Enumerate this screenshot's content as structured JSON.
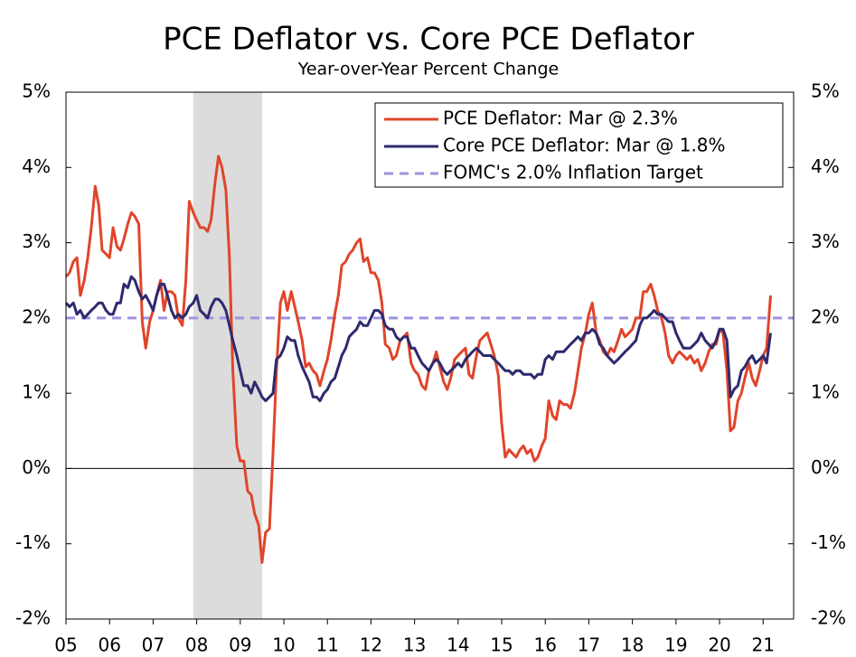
{
  "chart_data": {
    "type": "line",
    "title": "PCE Deflator vs. Core PCE Deflator",
    "subtitle": "Year-over-Year Percent Change",
    "x": [
      2005.0,
      2005.08,
      2005.17,
      2005.25,
      2005.33,
      2005.42,
      2005.5,
      2005.58,
      2005.67,
      2005.75,
      2005.83,
      2005.92,
      2006.0,
      2006.08,
      2006.17,
      2006.25,
      2006.33,
      2006.42,
      2006.5,
      2006.58,
      2006.67,
      2006.75,
      2006.83,
      2006.92,
      2007.0,
      2007.08,
      2007.17,
      2007.25,
      2007.33,
      2007.42,
      2007.5,
      2007.58,
      2007.67,
      2007.75,
      2007.83,
      2007.92,
      2008.0,
      2008.08,
      2008.17,
      2008.25,
      2008.33,
      2008.42,
      2008.5,
      2008.58,
      2008.67,
      2008.75,
      2008.83,
      2008.92,
      2009.0,
      2009.08,
      2009.17,
      2009.25,
      2009.33,
      2009.42,
      2009.5,
      2009.58,
      2009.67,
      2009.75,
      2009.83,
      2009.92,
      2010.0,
      2010.08,
      2010.17,
      2010.25,
      2010.33,
      2010.42,
      2010.5,
      2010.58,
      2010.67,
      2010.75,
      2010.83,
      2010.92,
      2011.0,
      2011.08,
      2011.17,
      2011.25,
      2011.33,
      2011.42,
      2011.5,
      2011.58,
      2011.67,
      2011.75,
      2011.83,
      2011.92,
      2012.0,
      2012.08,
      2012.17,
      2012.25,
      2012.33,
      2012.42,
      2012.5,
      2012.58,
      2012.67,
      2012.75,
      2012.83,
      2012.92,
      2013.0,
      2013.08,
      2013.17,
      2013.25,
      2013.33,
      2013.42,
      2013.5,
      2013.58,
      2013.67,
      2013.75,
      2013.83,
      2013.92,
      2014.0,
      2014.08,
      2014.17,
      2014.25,
      2014.33,
      2014.42,
      2014.5,
      2014.58,
      2014.67,
      2014.75,
      2014.83,
      2014.92,
      2015.0,
      2015.08,
      2015.17,
      2015.25,
      2015.33,
      2015.42,
      2015.5,
      2015.58,
      2015.67,
      2015.75,
      2015.83,
      2015.92,
      2016.0,
      2016.08,
      2016.17,
      2016.25,
      2016.33,
      2016.42,
      2016.5,
      2016.58,
      2016.67,
      2016.75,
      2016.83,
      2016.92,
      2017.0,
      2017.08,
      2017.17,
      2017.25,
      2017.33,
      2017.42,
      2017.5,
      2017.58,
      2017.67,
      2017.75,
      2017.83,
      2017.92,
      2018.0,
      2018.08,
      2018.17,
      2018.25,
      2018.33,
      2018.42,
      2018.5,
      2018.58,
      2018.67,
      2018.75,
      2018.83,
      2018.92,
      2019.0,
      2019.08,
      2019.17,
      2019.25,
      2019.33,
      2019.42,
      2019.5,
      2019.58,
      2019.67,
      2019.75,
      2019.83,
      2019.92,
      2020.0,
      2020.08,
      2020.17,
      2020.25,
      2020.33,
      2020.42,
      2020.5,
      2020.58,
      2020.67,
      2020.75,
      2020.83,
      2020.92,
      2021.0,
      2021.08,
      2021.17
    ],
    "series": [
      {
        "name": "PCE Deflator: Mar @ 2.3%",
        "color": "#e0452a",
        "values": [
          2.55,
          2.6,
          2.75,
          2.8,
          2.3,
          2.5,
          2.8,
          3.2,
          3.75,
          3.5,
          2.9,
          2.85,
          2.8,
          3.2,
          2.95,
          2.9,
          3.05,
          3.25,
          3.4,
          3.35,
          3.25,
          1.95,
          1.6,
          1.95,
          2.1,
          2.3,
          2.5,
          2.1,
          2.35,
          2.35,
          2.3,
          2.0,
          1.9,
          2.5,
          3.55,
          3.4,
          3.3,
          3.2,
          3.2,
          3.15,
          3.3,
          3.8,
          4.15,
          4.0,
          3.7,
          2.8,
          1.3,
          0.3,
          0.1,
          0.1,
          -0.3,
          -0.35,
          -0.6,
          -0.75,
          -1.25,
          -0.85,
          -0.8,
          0.2,
          1.3,
          2.2,
          2.35,
          2.1,
          2.35,
          2.15,
          1.95,
          1.7,
          1.35,
          1.4,
          1.3,
          1.25,
          1.1,
          1.3,
          1.45,
          1.7,
          2.05,
          2.3,
          2.7,
          2.75,
          2.85,
          2.9,
          3.0,
          3.05,
          2.75,
          2.8,
          2.6,
          2.6,
          2.5,
          2.2,
          1.65,
          1.6,
          1.45,
          1.5,
          1.7,
          1.75,
          1.8,
          1.4,
          1.3,
          1.25,
          1.1,
          1.05,
          1.3,
          1.4,
          1.55,
          1.35,
          1.15,
          1.05,
          1.2,
          1.45,
          1.5,
          1.55,
          1.6,
          1.25,
          1.2,
          1.5,
          1.7,
          1.75,
          1.8,
          1.65,
          1.5,
          1.25,
          0.6,
          0.15,
          0.25,
          0.2,
          0.15,
          0.25,
          0.3,
          0.2,
          0.25,
          0.1,
          0.15,
          0.3,
          0.4,
          0.9,
          0.7,
          0.65,
          0.9,
          0.85,
          0.85,
          0.8,
          1.0,
          1.3,
          1.6,
          1.8,
          2.05,
          2.2,
          1.8,
          1.7,
          1.55,
          1.5,
          1.6,
          1.55,
          1.7,
          1.85,
          1.75,
          1.8,
          1.85,
          2.0,
          2.0,
          2.35,
          2.35,
          2.45,
          2.3,
          2.1,
          2.0,
          1.8,
          1.5,
          1.4,
          1.5,
          1.55,
          1.5,
          1.45,
          1.5,
          1.4,
          1.45,
          1.3,
          1.4,
          1.55,
          1.65,
          1.65,
          1.85,
          1.8,
          1.3,
          0.5,
          0.55,
          0.9,
          1.0,
          1.2,
          1.4,
          1.2,
          1.1,
          1.3,
          1.5,
          1.6,
          2.3
        ]
      },
      {
        "name": "Core PCE Deflator: Mar @ 1.8%",
        "color": "#2e2a6e",
        "values": [
          2.2,
          2.15,
          2.2,
          2.05,
          2.1,
          2.0,
          2.05,
          2.1,
          2.15,
          2.2,
          2.2,
          2.1,
          2.05,
          2.05,
          2.2,
          2.2,
          2.45,
          2.4,
          2.55,
          2.5,
          2.35,
          2.25,
          2.3,
          2.2,
          2.1,
          2.3,
          2.45,
          2.45,
          2.3,
          2.1,
          2.0,
          2.05,
          2.0,
          2.05,
          2.15,
          2.2,
          2.3,
          2.1,
          2.05,
          2.0,
          2.15,
          2.25,
          2.25,
          2.2,
          2.1,
          1.9,
          1.7,
          1.5,
          1.3,
          1.1,
          1.1,
          1.0,
          1.15,
          1.05,
          0.95,
          0.9,
          0.95,
          1.0,
          1.45,
          1.5,
          1.6,
          1.75,
          1.7,
          1.7,
          1.5,
          1.35,
          1.25,
          1.15,
          0.95,
          0.95,
          0.9,
          1.0,
          1.05,
          1.15,
          1.2,
          1.35,
          1.5,
          1.6,
          1.75,
          1.8,
          1.85,
          1.95,
          1.9,
          1.9,
          2.0,
          2.1,
          2.1,
          2.05,
          1.9,
          1.85,
          1.85,
          1.75,
          1.7,
          1.75,
          1.75,
          1.6,
          1.6,
          1.5,
          1.4,
          1.35,
          1.3,
          1.4,
          1.45,
          1.4,
          1.3,
          1.25,
          1.3,
          1.35,
          1.4,
          1.35,
          1.45,
          1.5,
          1.55,
          1.6,
          1.55,
          1.5,
          1.5,
          1.5,
          1.45,
          1.4,
          1.35,
          1.3,
          1.3,
          1.25,
          1.3,
          1.3,
          1.25,
          1.25,
          1.25,
          1.2,
          1.25,
          1.25,
          1.45,
          1.5,
          1.45,
          1.55,
          1.55,
          1.55,
          1.6,
          1.65,
          1.7,
          1.75,
          1.7,
          1.8,
          1.8,
          1.85,
          1.8,
          1.65,
          1.6,
          1.5,
          1.45,
          1.4,
          1.45,
          1.5,
          1.55,
          1.6,
          1.65,
          1.7,
          1.9,
          2.0,
          2.0,
          2.05,
          2.1,
          2.05,
          2.05,
          2.0,
          1.95,
          1.95,
          1.8,
          1.7,
          1.6,
          1.6,
          1.6,
          1.65,
          1.7,
          1.8,
          1.7,
          1.65,
          1.6,
          1.7,
          1.85,
          1.85,
          1.7,
          0.95,
          1.05,
          1.1,
          1.3,
          1.35,
          1.45,
          1.5,
          1.4,
          1.45,
          1.5,
          1.4,
          1.8
        ]
      }
    ],
    "reference_line": {
      "name": "FOMC's 2.0% Inflation Target",
      "value": 2,
      "color": "#9d93e0"
    },
    "shaded_regions": [
      {
        "start": 2007.92,
        "end": 2009.5,
        "color": "#dcdcdc"
      }
    ],
    "xlim": [
      2005,
      2021.7
    ],
    "xticks": [
      {
        "value": 2005,
        "label": "05"
      },
      {
        "value": 2006,
        "label": "06"
      },
      {
        "value": 2007,
        "label": "07"
      },
      {
        "value": 2008,
        "label": "08"
      },
      {
        "value": 2009,
        "label": "09"
      },
      {
        "value": 2010,
        "label": "10"
      },
      {
        "value": 2011,
        "label": "11"
      },
      {
        "value": 2012,
        "label": "12"
      },
      {
        "value": 2013,
        "label": "13"
      },
      {
        "value": 2014,
        "label": "14"
      },
      {
        "value": 2015,
        "label": "15"
      },
      {
        "value": 2016,
        "label": "16"
      },
      {
        "value": 2017,
        "label": "17"
      },
      {
        "value": 2018,
        "label": "18"
      },
      {
        "value": 2019,
        "label": "19"
      },
      {
        "value": 2020,
        "label": "20"
      },
      {
        "value": 2021,
        "label": "21"
      }
    ],
    "ylim": [
      -2,
      5
    ],
    "yticks": [
      {
        "value": -2,
        "label": "-2%"
      },
      {
        "value": -1,
        "label": "-1%"
      },
      {
        "value": 0,
        "label": "0%"
      },
      {
        "value": 1,
        "label": "1%"
      },
      {
        "value": 2,
        "label": "2%"
      },
      {
        "value": 3,
        "label": "3%"
      },
      {
        "value": 4,
        "label": "4%"
      },
      {
        "value": 5,
        "label": "5%"
      }
    ],
    "y2lim": [
      -2,
      5
    ],
    "y2ticks": [
      {
        "value": -2,
        "label": "-2%"
      },
      {
        "value": -1,
        "label": "-1%"
      },
      {
        "value": 0,
        "label": "0%"
      },
      {
        "value": 1,
        "label": "1%"
      },
      {
        "value": 2,
        "label": "2%"
      },
      {
        "value": 3,
        "label": "3%"
      },
      {
        "value": 4,
        "label": "4%"
      },
      {
        "value": 5,
        "label": "5%"
      }
    ],
    "legend": "top-right"
  }
}
